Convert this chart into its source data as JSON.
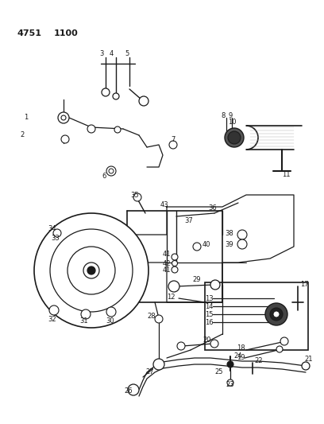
{
  "title1": "4751",
  "title2": "1100",
  "bg_color": "#ffffff",
  "lc": "#1a1a1a",
  "fig_w": 4.08,
  "fig_h": 5.33,
  "dpi": 100
}
